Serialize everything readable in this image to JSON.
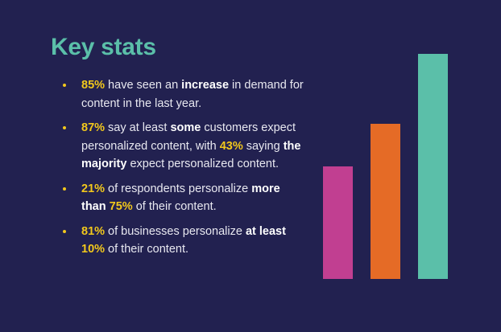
{
  "title": "Key stats",
  "stats": [
    {
      "p1": "85%",
      "t1": " have seen an ",
      "b1": "increase",
      "t2": " in demand for content in the last year."
    },
    {
      "p1": "87%",
      "t1": " say at least ",
      "b1": "some",
      "t2": " customers expect personalized content, with ",
      "p2": "43%",
      "t3": " saying ",
      "b2": "the majority",
      "t4": " expect personalized content."
    },
    {
      "p1": "21%",
      "t1": " of respondents personalize ",
      "b1": "more than",
      "s1": " ",
      "p2": "75%",
      "t2": " of their content."
    },
    {
      "p1": "81%",
      "t1": " of businesses personalize ",
      "b1": "at least",
      "s1": " ",
      "p2": "10%",
      "t2": " of their content."
    }
  ],
  "decor_bars": {
    "colors": [
      "#c13f91",
      "#e56b26",
      "#5bbfa9"
    ],
    "relative_heights": [
      0.5,
      0.69,
      1.0
    ]
  }
}
